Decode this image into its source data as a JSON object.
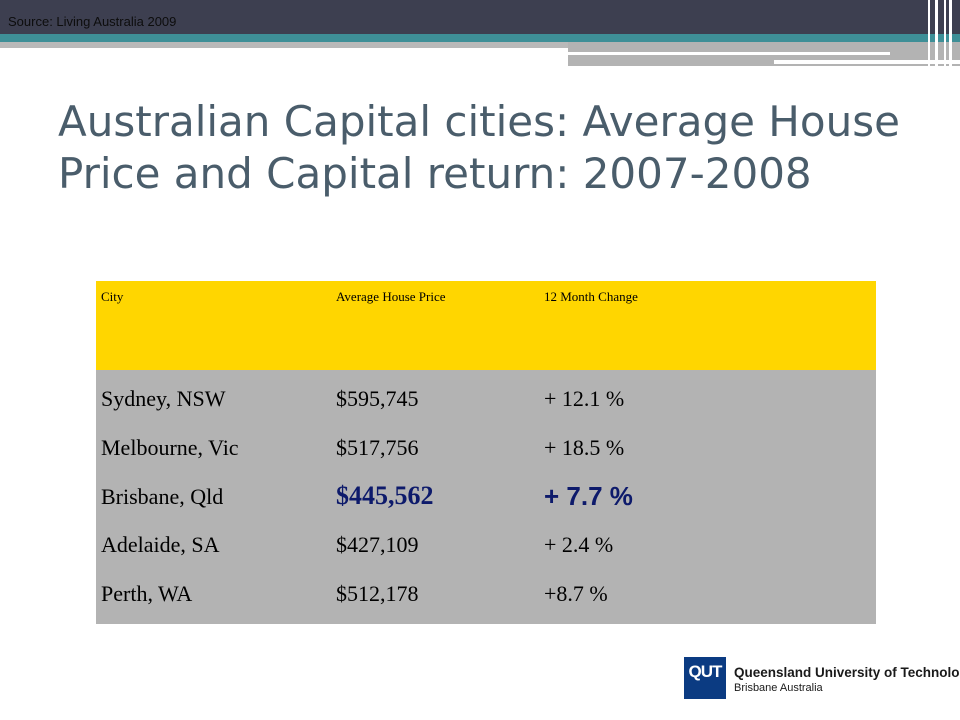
{
  "header": {
    "source": "Source: Living Australia 2009"
  },
  "slide": {
    "title": "Australian Capital cities: Average House Price and Capital return: 2007-2008"
  },
  "table": {
    "columns": [
      "City",
      "Average House Price",
      "12 Month Change"
    ],
    "rows": [
      {
        "city": "Sydney, NSW",
        "price": "$595,745",
        "change": "+ 12.1 %"
      },
      {
        "city": "Melbourne, Vic",
        "price": "$517,756",
        "change": "+ 18.5 %"
      },
      {
        "city": "Brisbane, Qld",
        "price": "$445,562",
        "change": "+ 7.7 %"
      },
      {
        "city": "Adelaide, SA",
        "price": "$427,109",
        "change": "+ 2.4 %"
      },
      {
        "city": "Perth, WA",
        "price": "$512,178",
        "change": "+8.7 %"
      }
    ]
  },
  "logo": {
    "mark": "QUT",
    "name": "Queensland University of Technology",
    "location": "Brisbane Australia"
  },
  "colors": {
    "banner": "#3d3f50",
    "accent_teal": "#3e8f97",
    "header_row": "#ffd600",
    "body_rows": "#b3b3b3",
    "highlight_text": "#0d1a6b",
    "title": "#4a5d6b"
  }
}
